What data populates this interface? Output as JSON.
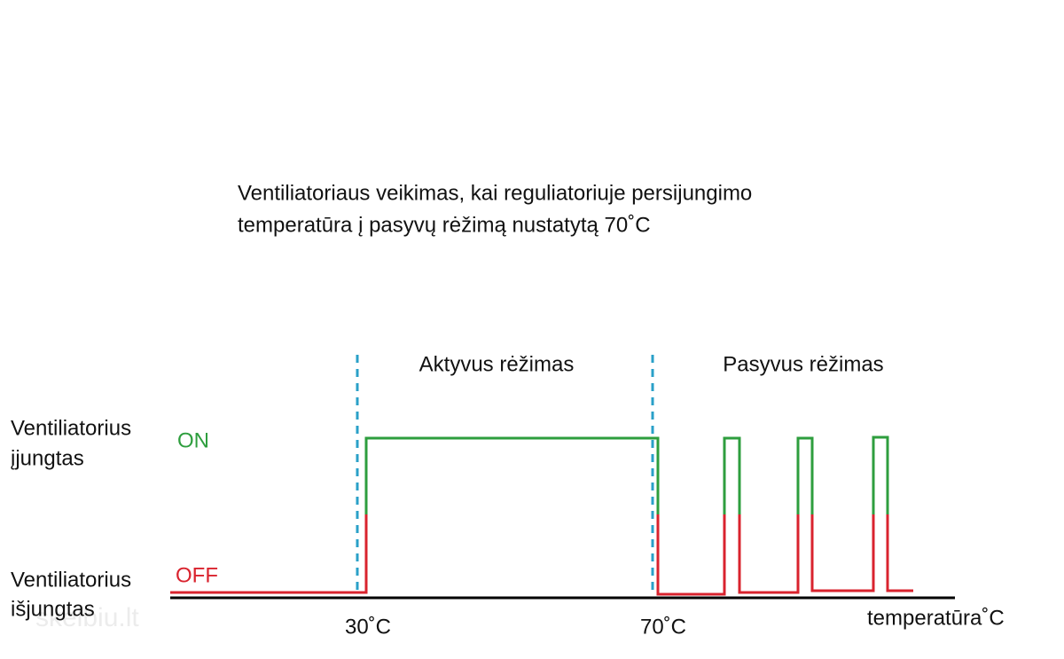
{
  "title": [
    "Ventiliatoriaus veikimas, kai reguliatoriuje persijungimo",
    "temperatūra į pasyvų rėžimą nustatytą 70˚C"
  ],
  "modes": [
    "Aktyvus rėžimas",
    "Pasyvus rėžimas"
  ],
  "states": [
    {
      "label": [
        "Ventiliatorius",
        "įjungtas"
      ],
      "level": "ON"
    },
    {
      "label": [
        "Ventiliatorius",
        "išjungtas"
      ],
      "level": "OFF"
    }
  ],
  "axis": {
    "ticks": [
      "30˚C",
      "70˚C"
    ],
    "label": "temperatūra˚C"
  },
  "watermark": "skelbiu.lt"
}
